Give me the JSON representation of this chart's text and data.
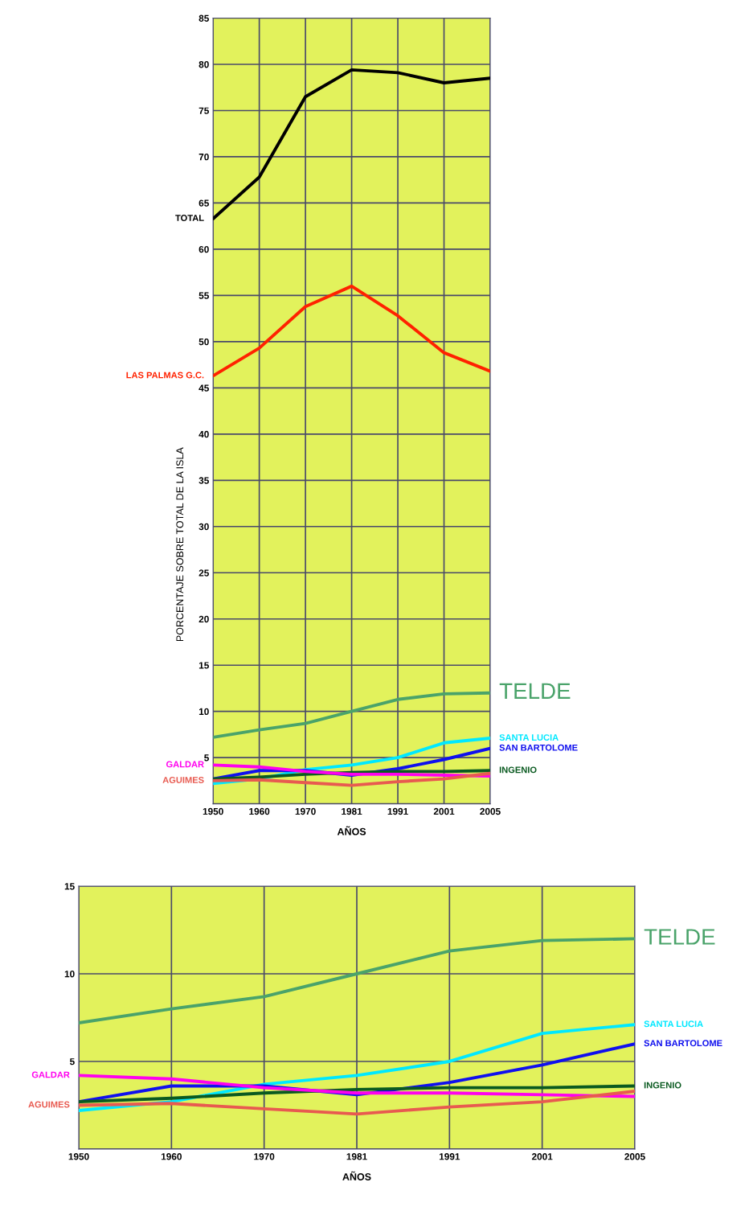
{
  "chart_data": [
    {
      "type": "line",
      "xlabel": "AÑOS",
      "ylabel": "PORCENTAJE SOBRE TOTAL DE LA ISLA",
      "categories": [
        "1950",
        "1960",
        "1970",
        "1981",
        "1991",
        "2001",
        "2005"
      ],
      "ylim": [
        0,
        85
      ],
      "yticks": [
        {
          "value": 0,
          "label": null
        },
        5,
        10,
        15,
        20,
        25,
        30,
        35,
        40,
        45,
        50,
        55,
        60,
        65,
        70,
        75,
        80,
        85
      ],
      "grid": true,
      "legend": false,
      "marker": "none",
      "line_style": "solid",
      "series": [
        {
          "name": "TOTAL",
          "color": "#000000",
          "values": [
            63.3,
            67.8,
            76.5,
            79.4,
            79.1,
            78.0,
            78.5
          ]
        },
        {
          "name": "LAS PALMAS G.C.",
          "color": "#ff2200",
          "values": [
            46.3,
            49.3,
            53.8,
            56.0,
            52.8,
            48.8,
            46.8
          ]
        },
        {
          "name": "TELDE",
          "color": "#4aa36a",
          "values": [
            7.2,
            8.0,
            8.7,
            10.0,
            11.3,
            11.9,
            12.0
          ]
        },
        {
          "name": "SANTA LUCIA",
          "color": "#00e8ff",
          "values": [
            2.2,
            2.7,
            3.7,
            4.2,
            5.0,
            6.6,
            7.1
          ]
        },
        {
          "name": "SAN BARTOLOME",
          "color": "#1010ee",
          "values": [
            2.7,
            3.6,
            3.6,
            3.1,
            3.8,
            4.8,
            6.0
          ]
        },
        {
          "name": "INGENIO",
          "color": "#0a5a20",
          "values": [
            2.7,
            2.9,
            3.2,
            3.4,
            3.5,
            3.5,
            3.6
          ]
        },
        {
          "name": "GALDAR",
          "color": "#ff00ee",
          "values": [
            4.2,
            4.0,
            3.5,
            3.2,
            3.2,
            3.1,
            3.0
          ]
        },
        {
          "name": "AGUIMES",
          "color": "#e85a50",
          "values": [
            2.5,
            2.6,
            2.3,
            2.0,
            2.4,
            2.7,
            3.3
          ]
        }
      ]
    },
    {
      "type": "line",
      "xlabel": "AÑOS",
      "categories": [
        "1950",
        "1960",
        "1970",
        "1981",
        "1991",
        "2001",
        "2005"
      ],
      "ylim": [
        0,
        15
      ],
      "yticks": [
        {
          "value": 0,
          "label": null
        },
        5,
        10,
        15
      ],
      "grid": true,
      "legend": false,
      "marker": "none",
      "line_style": "solid",
      "series": [
        {
          "name": "TELDE",
          "color": "#4aa36a",
          "values": [
            7.2,
            8.0,
            8.7,
            10.0,
            11.3,
            11.9,
            12.0
          ]
        },
        {
          "name": "SANTA LUCIA",
          "color": "#00e8ff",
          "values": [
            2.2,
            2.7,
            3.7,
            4.2,
            5.0,
            6.6,
            7.1
          ]
        },
        {
          "name": "SAN BARTOLOME",
          "color": "#1010ee",
          "values": [
            2.7,
            3.6,
            3.6,
            3.1,
            3.8,
            4.8,
            6.0
          ]
        },
        {
          "name": "INGENIO",
          "color": "#0a5a20",
          "values": [
            2.7,
            2.9,
            3.2,
            3.4,
            3.5,
            3.5,
            3.6
          ]
        },
        {
          "name": "GALDAR",
          "color": "#ff00ee",
          "values": [
            4.2,
            4.0,
            3.5,
            3.2,
            3.2,
            3.1,
            3.0
          ]
        },
        {
          "name": "AGUIMES",
          "color": "#e85a50",
          "values": [
            2.5,
            2.6,
            2.3,
            2.0,
            2.4,
            2.7,
            3.3
          ]
        }
      ]
    }
  ]
}
